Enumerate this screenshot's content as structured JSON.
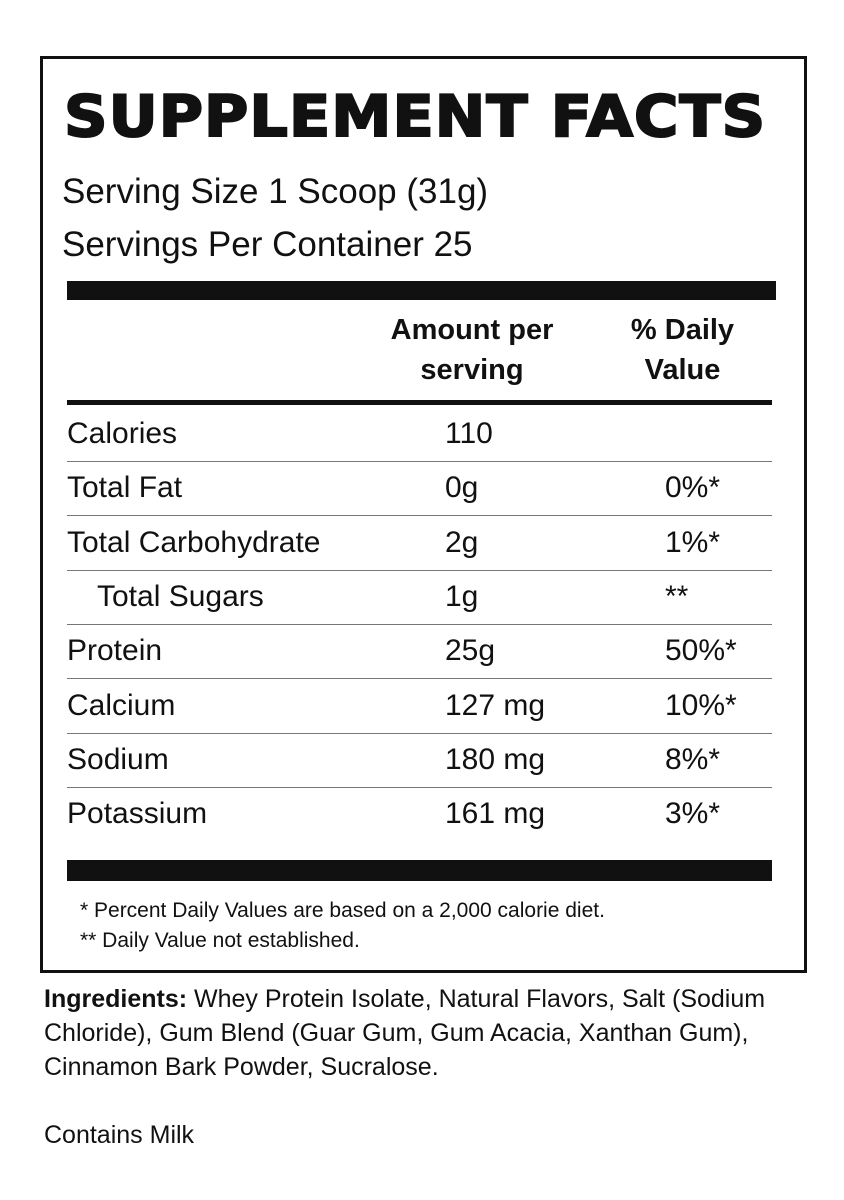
{
  "title": "SUPPLEMENT FACTS",
  "serving_size": "Serving Size 1 Scoop (31g)",
  "servings_per_container": "Servings Per Container 25",
  "header": {
    "amount_line1": "Amount per",
    "amount_line2": "serving",
    "dv_line1": "% Daily",
    "dv_line2": "Value"
  },
  "rows": [
    {
      "name": "Calories",
      "amount": "110",
      "dv": ""
    },
    {
      "name": "Total Fat",
      "amount": "0g",
      "dv": "0%*"
    },
    {
      "name": "Total Carbohydrate",
      "amount": "2g",
      "dv": "1%*"
    },
    {
      "name": "Total Sugars",
      "amount": "1g",
      "dv": "**"
    },
    {
      "name": "Protein",
      "amount": "25g",
      "dv": "50%*"
    },
    {
      "name": "Calcium",
      "amount": "127 mg",
      "dv": "10%*"
    },
    {
      "name": "Sodium",
      "amount": "180 mg",
      "dv": "8%*"
    },
    {
      "name": "Potassium",
      "amount": "161 mg",
      "dv": "3%*"
    }
  ],
  "footnotes": [
    "* Percent Daily Values are based on a 2,000 calorie diet.",
    "** Daily Value not established."
  ],
  "ingredients": {
    "label": "Ingredients:",
    "text": " Whey Protein Isolate, Natural Flavors, Salt (Sodium Chloride), Gum Blend (Guar Gum, Gum Acacia, Xanthan Gum), Cinnamon Bark Powder, Sucralose."
  },
  "allergen": "Contains Milk"
}
